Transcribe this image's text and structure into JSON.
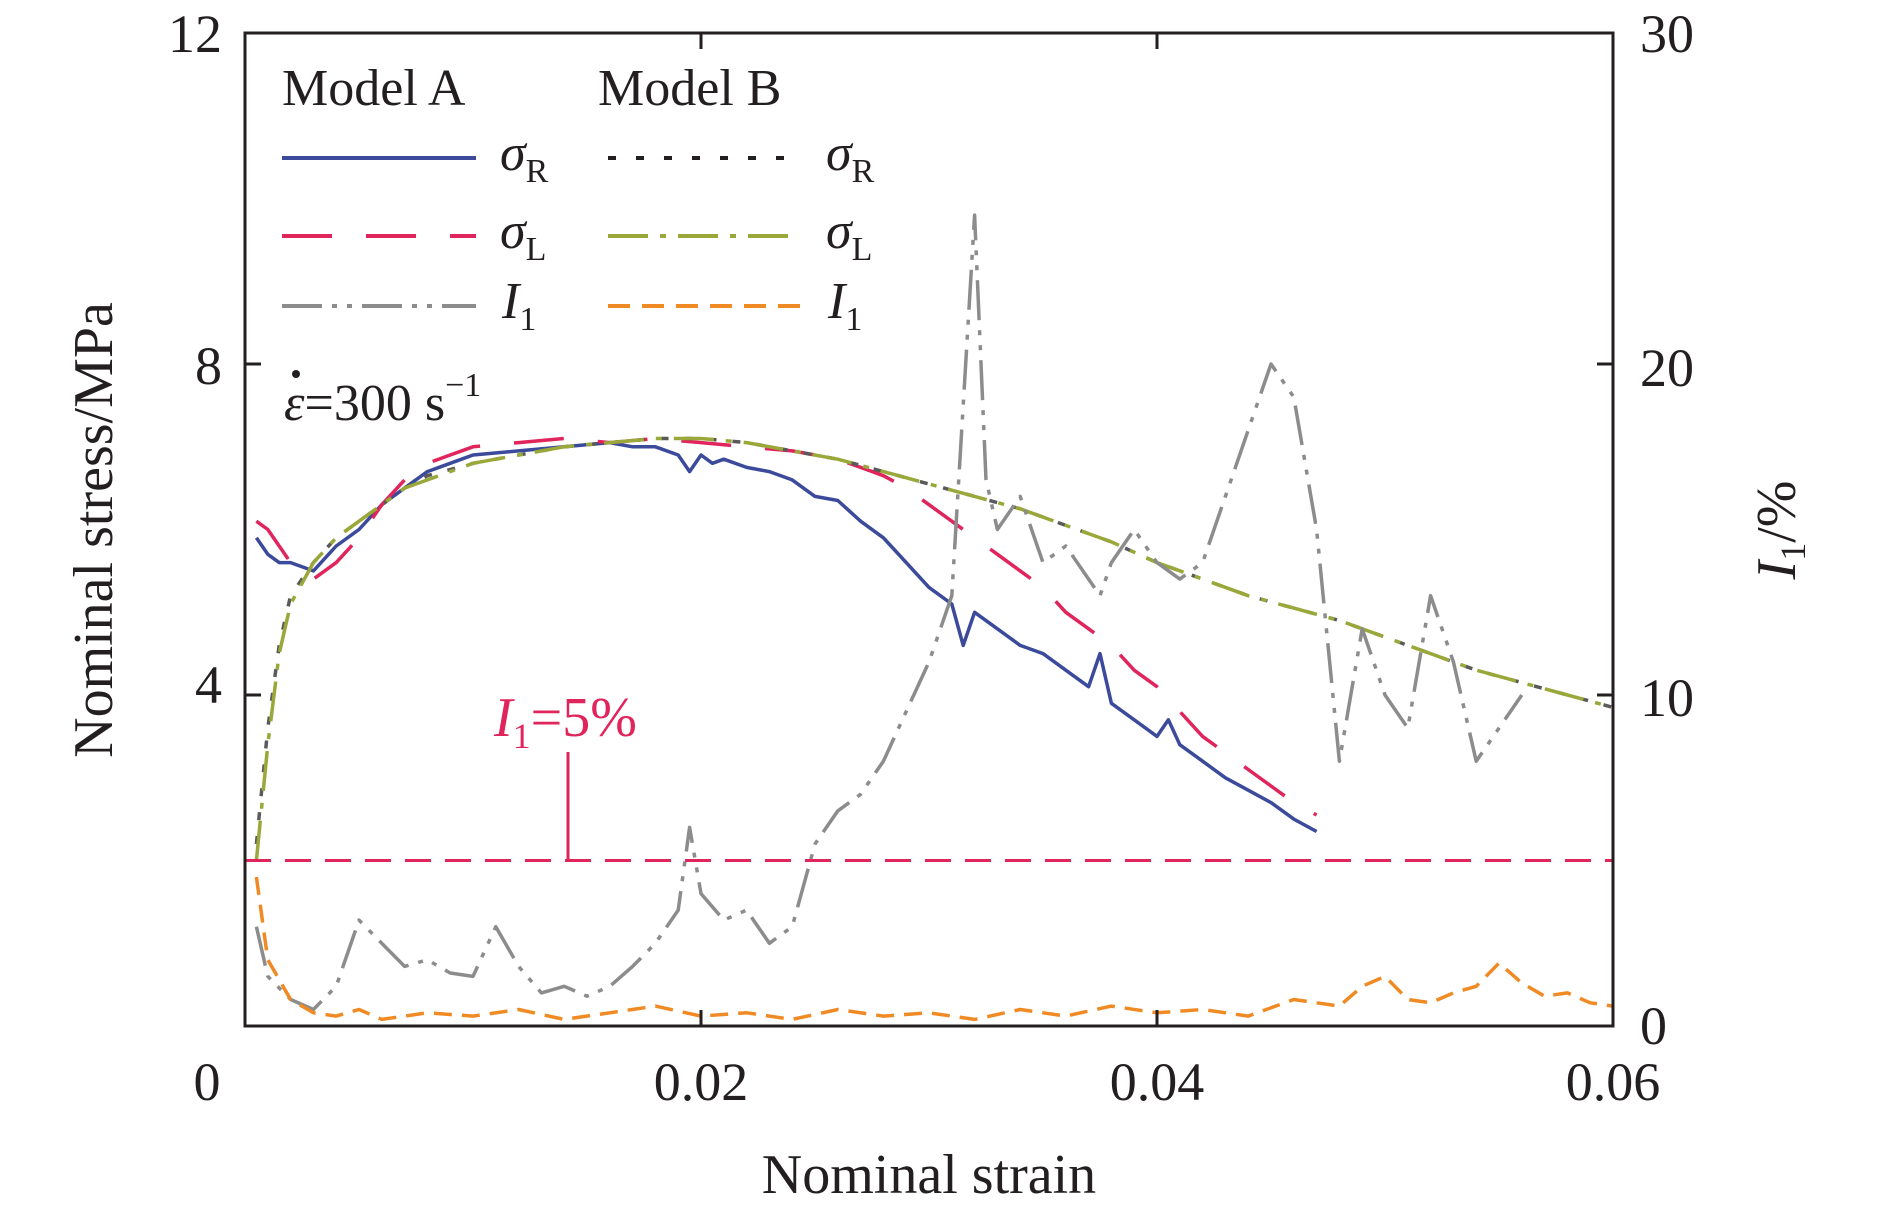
{
  "chart_data": {
    "type": "line",
    "xlabel": "Nominal strain",
    "ylabel": "Nominal stress/MPa",
    "y2label_main": "I",
    "y2label_sub": "1",
    "y2label_unit": "/%",
    "xlim": [
      0,
      0.06
    ],
    "ylim": [
      0,
      12
    ],
    "y2lim": [
      0,
      30
    ],
    "x_ticks": [
      "0",
      "0.02",
      "0.04",
      "0.06"
    ],
    "x_tick_values": [
      0,
      0.02,
      0.04,
      0.06
    ],
    "y_ticks": [
      "0",
      "4",
      "8",
      "12"
    ],
    "y_tick_values": [
      0,
      4,
      8,
      12
    ],
    "y2_ticks": [
      "0",
      "10",
      "20",
      "30"
    ],
    "y2_tick_values": [
      0,
      10,
      20,
      30
    ],
    "grid": false,
    "legend": {
      "placement": "top-left",
      "group_a": "Model A",
      "group_b": "Model B",
      "entries": [
        {
          "symbol": "σ",
          "sub": "R",
          "model": "A",
          "color": "#3b4a9b",
          "dash": "solid"
        },
        {
          "symbol": "σ",
          "sub": "R",
          "model": "B",
          "color": "#231f20",
          "dash": "dotted"
        },
        {
          "symbol": "σ",
          "sub": "L",
          "model": "A",
          "color": "#e0245c",
          "dash": "long-dash"
        },
        {
          "symbol": "σ",
          "sub": "L",
          "model": "B",
          "color": "#9aa83a",
          "dash": "dash-dot"
        },
        {
          "symbol": "I",
          "sub": "1",
          "model": "A",
          "color": "#8c8c8c",
          "dash": "dash-dot-dot"
        },
        {
          "symbol": "I",
          "sub": "1",
          "model": "B",
          "color": "#f08a24",
          "dash": "short-dash"
        }
      ]
    },
    "annotations": {
      "rate_symbol": "ε",
      "rate_text": "=300 s",
      "rate_exp": "−1",
      "threshold_main": "I",
      "threshold_sub": "1",
      "threshold_text": "=5%",
      "threshold_color": "#e0245c",
      "threshold_value_percent": 5
    },
    "series": [
      {
        "name": "Model A σR",
        "axis": "left",
        "color": "#3b4a9b",
        "x": [
          0.0005,
          0.001,
          0.0015,
          0.002,
          0.003,
          0.004,
          0.005,
          0.006,
          0.007,
          0.008,
          0.009,
          0.01,
          0.012,
          0.014,
          0.016,
          0.017,
          0.018,
          0.019,
          0.0195,
          0.02,
          0.0205,
          0.021,
          0.022,
          0.023,
          0.024,
          0.025,
          0.026,
          0.027,
          0.028,
          0.029,
          0.03,
          0.031,
          0.0315,
          0.032,
          0.033,
          0.034,
          0.035,
          0.036,
          0.037,
          0.0375,
          0.038,
          0.039,
          0.04,
          0.0405,
          0.041,
          0.042,
          0.043,
          0.044,
          0.045,
          0.046,
          0.047
        ],
        "y": [
          5.9,
          5.7,
          5.6,
          5.6,
          5.5,
          5.8,
          6.0,
          6.3,
          6.5,
          6.7,
          6.8,
          6.9,
          6.95,
          7.0,
          7.05,
          7.0,
          7.0,
          6.9,
          6.7,
          6.9,
          6.8,
          6.85,
          6.75,
          6.7,
          6.6,
          6.4,
          6.35,
          6.1,
          5.9,
          5.6,
          5.3,
          5.1,
          4.6,
          5.0,
          4.8,
          4.6,
          4.5,
          4.3,
          4.1,
          4.5,
          3.9,
          3.7,
          3.5,
          3.7,
          3.4,
          3.2,
          3.0,
          2.85,
          2.7,
          2.5,
          2.35
        ]
      },
      {
        "name": "Model A σL",
        "axis": "left",
        "color": "#e0245c",
        "x": [
          0.0005,
          0.001,
          0.0015,
          0.002,
          0.003,
          0.004,
          0.005,
          0.006,
          0.007,
          0.008,
          0.009,
          0.01,
          0.012,
          0.014,
          0.016,
          0.018,
          0.02,
          0.022,
          0.024,
          0.025,
          0.026,
          0.027,
          0.028,
          0.029,
          0.03,
          0.031,
          0.032,
          0.033,
          0.034,
          0.035,
          0.036,
          0.037,
          0.038,
          0.039,
          0.04,
          0.041,
          0.042,
          0.043,
          0.044,
          0.045,
          0.046,
          0.047
        ],
        "y": [
          6.1,
          6.0,
          5.8,
          5.6,
          5.4,
          5.6,
          5.9,
          6.3,
          6.6,
          6.8,
          6.9,
          7.0,
          7.05,
          7.1,
          7.05,
          7.1,
          7.05,
          7.0,
          6.95,
          6.9,
          6.85,
          6.75,
          6.65,
          6.5,
          6.3,
          6.1,
          5.9,
          5.7,
          5.5,
          5.3,
          5.0,
          4.8,
          4.6,
          4.3,
          4.1,
          3.8,
          3.5,
          3.3,
          3.1,
          2.9,
          2.7,
          2.55
        ]
      },
      {
        "name": "Model B σR",
        "axis": "left",
        "color": "#5a5a5a",
        "x": [
          0.0005,
          0.001,
          0.0015,
          0.002,
          0.003,
          0.004,
          0.005,
          0.006,
          0.007,
          0.008,
          0.01,
          0.012,
          0.014,
          0.016,
          0.018,
          0.02,
          0.022,
          0.024,
          0.026,
          0.028,
          0.03,
          0.032,
          0.034,
          0.036,
          0.038,
          0.04,
          0.042,
          0.044,
          0.046,
          0.048,
          0.05,
          0.052,
          0.054,
          0.056,
          0.058,
          0.06
        ],
        "y": [
          2.2,
          3.6,
          4.6,
          5.2,
          5.6,
          5.9,
          6.1,
          6.3,
          6.5,
          6.65,
          6.8,
          6.9,
          7.0,
          7.05,
          7.1,
          7.1,
          7.05,
          6.95,
          6.85,
          6.7,
          6.55,
          6.4,
          6.25,
          6.05,
          5.85,
          5.6,
          5.4,
          5.2,
          5.05,
          4.9,
          4.7,
          4.5,
          4.3,
          4.15,
          4.0,
          3.85
        ]
      },
      {
        "name": "Model B σL",
        "axis": "left",
        "color": "#9aa83a",
        "x": [
          0.0005,
          0.001,
          0.0015,
          0.002,
          0.003,
          0.004,
          0.005,
          0.006,
          0.007,
          0.008,
          0.01,
          0.012,
          0.014,
          0.016,
          0.018,
          0.02,
          0.022,
          0.024,
          0.026,
          0.028,
          0.03,
          0.032,
          0.034,
          0.036,
          0.038,
          0.04,
          0.042,
          0.044,
          0.046,
          0.048,
          0.05,
          0.052,
          0.054,
          0.056,
          0.058,
          0.06
        ],
        "y": [
          2.0,
          3.4,
          4.5,
          5.1,
          5.6,
          5.9,
          6.1,
          6.3,
          6.5,
          6.6,
          6.8,
          6.9,
          7.0,
          7.05,
          7.1,
          7.1,
          7.05,
          6.95,
          6.85,
          6.7,
          6.55,
          6.4,
          6.25,
          6.05,
          5.85,
          5.6,
          5.4,
          5.2,
          5.05,
          4.9,
          4.7,
          4.5,
          4.3,
          4.15,
          4.0,
          3.85
        ]
      },
      {
        "name": "Model A I1",
        "axis": "right",
        "color": "#8c8c8c",
        "x": [
          0.0005,
          0.001,
          0.002,
          0.003,
          0.004,
          0.005,
          0.006,
          0.007,
          0.008,
          0.009,
          0.01,
          0.011,
          0.012,
          0.013,
          0.014,
          0.015,
          0.016,
          0.017,
          0.018,
          0.019,
          0.0195,
          0.02,
          0.021,
          0.022,
          0.023,
          0.024,
          0.025,
          0.026,
          0.027,
          0.028,
          0.029,
          0.03,
          0.031,
          0.032,
          0.0325,
          0.033,
          0.034,
          0.035,
          0.036,
          0.037,
          0.0375,
          0.038,
          0.039,
          0.04,
          0.041,
          0.042,
          0.043,
          0.044,
          0.045,
          0.046,
          0.047,
          0.048,
          0.049,
          0.05,
          0.051,
          0.052,
          0.053,
          0.054,
          0.055,
          0.056
        ],
        "y": [
          3.0,
          1.5,
          0.8,
          0.5,
          1.2,
          3.2,
          2.5,
          1.8,
          2.0,
          1.6,
          1.5,
          3.0,
          1.8,
          1.0,
          1.2,
          0.9,
          1.2,
          1.8,
          2.5,
          3.5,
          6.0,
          4.0,
          3.2,
          3.5,
          2.5,
          3.0,
          5.5,
          6.5,
          7.0,
          8.0,
          9.5,
          11.0,
          13.0,
          24.5,
          16.5,
          15.0,
          16.0,
          14.0,
          14.5,
          13.5,
          13.0,
          14.0,
          15.0,
          14.0,
          13.5,
          14.0,
          16.0,
          18.0,
          20.0,
          19.0,
          15.0,
          8.0,
          12.0,
          10.0,
          9.0,
          13.0,
          11.0,
          8.0,
          9.0,
          10.0
        ]
      },
      {
        "name": "Model B I1",
        "axis": "right",
        "color": "#f08a24",
        "x": [
          0.0005,
          0.001,
          0.002,
          0.003,
          0.004,
          0.005,
          0.006,
          0.008,
          0.01,
          0.012,
          0.014,
          0.016,
          0.018,
          0.02,
          0.022,
          0.024,
          0.026,
          0.028,
          0.03,
          0.032,
          0.034,
          0.036,
          0.038,
          0.04,
          0.042,
          0.044,
          0.046,
          0.048,
          0.049,
          0.05,
          0.051,
          0.052,
          0.053,
          0.054,
          0.055,
          0.056,
          0.057,
          0.058,
          0.059,
          0.06
        ],
        "y": [
          4.5,
          2.0,
          0.8,
          0.4,
          0.3,
          0.5,
          0.2,
          0.4,
          0.3,
          0.5,
          0.2,
          0.4,
          0.6,
          0.3,
          0.4,
          0.2,
          0.5,
          0.3,
          0.4,
          0.2,
          0.5,
          0.3,
          0.6,
          0.4,
          0.5,
          0.3,
          0.8,
          0.6,
          1.2,
          1.5,
          0.8,
          0.7,
          1.0,
          1.2,
          1.9,
          1.3,
          0.9,
          1.0,
          0.7,
          0.6
        ]
      }
    ]
  }
}
